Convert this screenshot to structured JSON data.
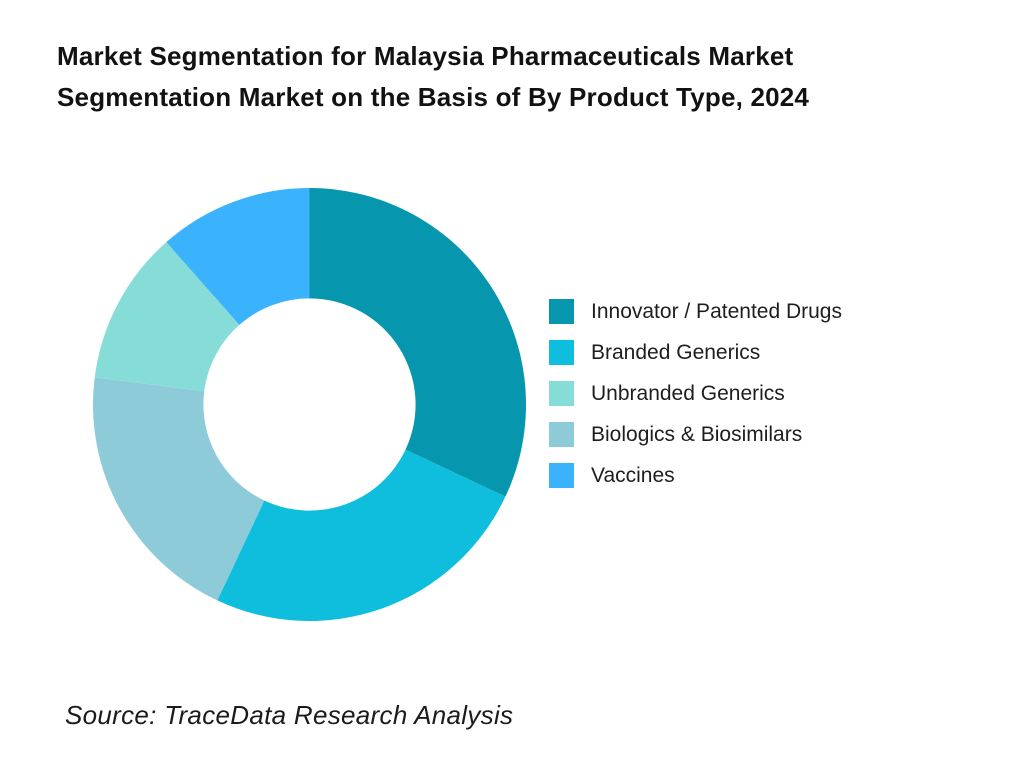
{
  "title": "Market Segmentation for Malaysia Pharmaceuticals Market Segmentation Market on the Basis of By Product Type, 2024",
  "source_note": "Source: TraceData Research Analysis",
  "colors": {
    "background": "#ffffff",
    "title_text": "#121212",
    "legend_text": "#1e1e1e",
    "innovator_patented_drugs": "#0696AE",
    "branded_generics": "#0FBEDD",
    "unbranded_generics": "#86DCD6",
    "biologics_biosimilars": "#8ECBD9",
    "vaccines": "#3AB3FC"
  },
  "chart_data": {
    "type": "pie",
    "subtype": "donut",
    "title": "Market Segmentation for Malaysia Pharmaceuticals Market Segmentation Market on the Basis of By Product Type, 2024",
    "values_unit": "percent share (estimated from segment angles)",
    "start_angle_deg": 0,
    "direction": "clockwise",
    "inner_radius_ratio": 0.49,
    "data_labels_shown": false,
    "legend_position": "right",
    "segments_draw_order": [
      {
        "label": "Innovator / Patented Drugs",
        "value": 32,
        "color": "#0696AE"
      },
      {
        "label": "Branded Generics",
        "value": 25,
        "color": "#0FBEDD"
      },
      {
        "label": "Biologics & Biosimilars",
        "value": 20,
        "color": "#8ECBD9"
      },
      {
        "label": "Unbranded Generics",
        "value": 11.5,
        "color": "#86DCD6"
      },
      {
        "label": "Vaccines",
        "value": 11.5,
        "color": "#3AB3FC"
      }
    ],
    "legend": [
      {
        "label": "Innovator / Patented Drugs",
        "color": "#0696AE"
      },
      {
        "label": "Branded Generics",
        "color": "#0FBEDD"
      },
      {
        "label": "Unbranded Generics",
        "color": "#86DCD6"
      },
      {
        "label": "Biologics & Biosimilars",
        "color": "#8ECBD9"
      },
      {
        "label": "Vaccines",
        "color": "#3AB3FC"
      }
    ]
  }
}
